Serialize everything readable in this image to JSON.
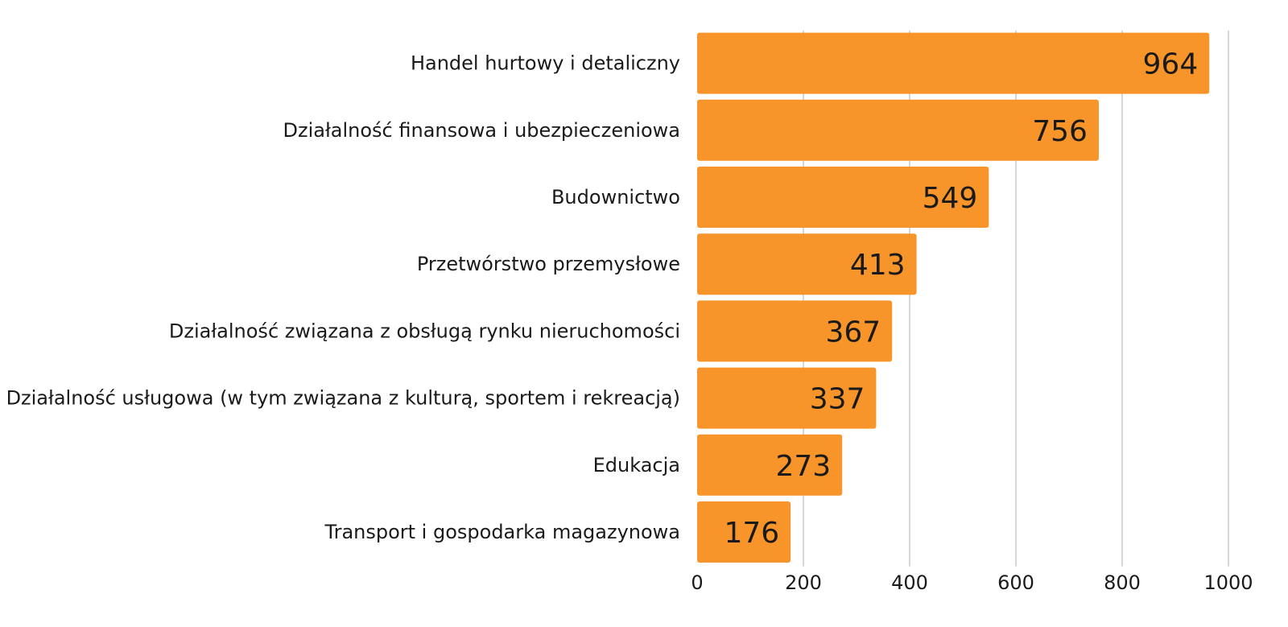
{
  "chart_data": {
    "type": "bar",
    "orientation": "horizontal",
    "categories": [
      "Handel hurtowy i detaliczny",
      "Działalność finansowa i ubezpieczeniowa",
      "Budownictwo",
      "Przetwórstwo przemysłowe",
      "Działalność związana z obsługą rynku nieruchomości",
      "Działalność usługowa (w tym związana z kulturą, sportem i rekreacją)",
      "Edukacja",
      "Transport i gospodarka magazynowa"
    ],
    "values": [
      964,
      756,
      549,
      413,
      367,
      337,
      273,
      176
    ],
    "title": "",
    "xlabel": "",
    "ylabel": "",
    "xlim": [
      0,
      1000
    ],
    "ticks": [
      0,
      200,
      400,
      600,
      800,
      1000
    ],
    "grid": "vertical",
    "legend": "none",
    "bar_color": "#F7942A",
    "text_color": "#1a1a1a",
    "grid_color": "#c8c8c8"
  }
}
